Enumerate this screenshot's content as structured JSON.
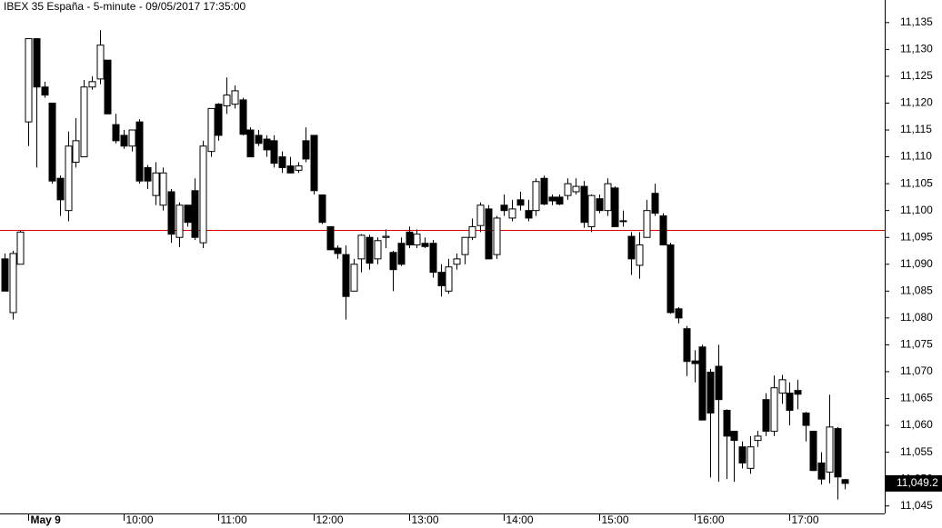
{
  "chart_data": {
    "type": "candlestick",
    "title": "IBEX 35 España - 5-minute - 09/05/2017 17:35:00",
    "categories": [
      null,
      null,
      null,
      "May 9",
      null,
      null,
      null,
      null,
      null,
      null,
      null,
      null,
      null,
      null,
      null,
      "10:00",
      null,
      null,
      null,
      null,
      null,
      null,
      null,
      null,
      null,
      null,
      null,
      "11:00",
      null,
      null,
      null,
      null,
      null,
      null,
      null,
      null,
      null,
      null,
      null,
      "12:00",
      null,
      null,
      null,
      null,
      null,
      null,
      null,
      null,
      null,
      null,
      null,
      "13:00",
      null,
      null,
      null,
      null,
      null,
      null,
      null,
      null,
      null,
      null,
      null,
      "14:00",
      null,
      null,
      null,
      null,
      null,
      null,
      null,
      null,
      null,
      null,
      null,
      "15:00",
      null,
      null,
      null,
      null,
      null,
      null,
      null,
      null,
      null,
      null,
      null,
      "16:00",
      null,
      null,
      null,
      null,
      null,
      null,
      null,
      null,
      null,
      null,
      null,
      "17:00",
      null,
      null,
      null,
      null,
      null,
      null,
      null
    ],
    "open": [
      11091,
      11081,
      11090,
      11116.5,
      11132,
      11123,
      11120,
      11106,
      11100,
      11109,
      11110,
      11123,
      11124.5,
      11128,
      11116,
      11114,
      11112,
      11116.5,
      11108,
      11102.8,
      11101,
      11103.5,
      11095,
      11101,
      11103.7,
      11094,
      11111,
      11119.8,
      11119.5,
      11119.8,
      11120.6,
      11115,
      11114,
      11113.3,
      11113,
      11110,
      11108.3,
      11107.5,
      11113,
      11114,
      11102.9,
      11097,
      11093,
      11091.8,
      11085,
      11091,
      11095,
      11091,
      11095,
      11092.2,
      11093.9,
      11096,
      11093.6,
      11093.9,
      11093.9,
      11088.5,
      11085,
      11090,
      11091.8,
      11095,
      11097.2,
      11100.3,
      11091.8,
      11101,
      11098.6,
      11102,
      11100,
      11100,
      11106,
      11102.5,
      11102.5,
      11102.8,
      11103.5,
      11104.5,
      11097,
      11102.2,
      11100,
      11104.2,
      11098.1,
      11095.2,
      11089.8,
      11095,
      11103.2,
      11099,
      11093.6,
      11081.7,
      11078,
      11072,
      11074.6,
      11069.9,
      11071,
      11062.8,
      11058.9,
      11056,
      11052,
      11057.2,
      11064.8,
      11058.9,
      11066,
      11066,
      11066.5,
      11062.3,
      11058.9,
      11053,
      11051.3,
      11059.4,
      11049.9
    ],
    "high": [
      11092,
      11092.5,
      11096.3,
      11132,
      11132,
      11124,
      11120,
      11106.5,
      11114.7,
      11117.2,
      11124.3,
      11125,
      11133.6,
      11128,
      11118,
      11115,
      11115,
      11117,
      11108.5,
      11109,
      11108,
      11104,
      11101.5,
      11101,
      11106,
      11113,
      11119,
      11120,
      11124.8,
      11123.3,
      11121,
      11115.5,
      11115,
      11114,
      11114,
      11111,
      11110,
      11109,
      11115.5,
      11114,
      11103,
      11097,
      11093.5,
      11093.5,
      11091,
      11095.6,
      11095.5,
      11095,
      11096.5,
      11092.5,
      11095,
      11097,
      11096.5,
      11095,
      11094.5,
      11090,
      11091,
      11092,
      11095,
      11098.5,
      11101.5,
      11101,
      11099,
      11103,
      11102,
      11103.5,
      11102,
      11106,
      11106.5,
      11103,
      11103,
      11106,
      11106,
      11105.5,
      11103,
      11103,
      11106,
      11104.5,
      11100,
      11096,
      11096,
      11102,
      11105,
      11099.5,
      11094,
      11082,
      11078.5,
      11074,
      11075,
      11070.5,
      11075,
      11063,
      11059,
      11057,
      11058,
      11059,
      11066,
      11069.3,
      11069.4,
      11068,
      11068.5,
      11062.5,
      11059,
      11055,
      11065.7,
      11059.7,
      11050
    ],
    "low": [
      11085,
      11079.7,
      11090,
      11112,
      11108,
      11121,
      11105,
      11099,
      11098,
      11108,
      11110,
      11122.5,
      11123.5,
      11118,
      11112.5,
      11111.5,
      11111,
      11105,
      11104,
      11101,
      11100,
      11094,
      11093.2,
      11097,
      11094.5,
      11093,
      11110,
      11113,
      11118,
      11119,
      11114,
      11110,
      11112,
      11110,
      11108,
      11107,
      11107,
      11107,
      11109,
      11103,
      11097.5,
      11092.7,
      11091,
      11079.7,
      11085,
      11088.5,
      11089,
      11090,
      11093,
      11085,
      11089.7,
      11093,
      11093,
      11093,
      11087.5,
      11084,
      11084.5,
      11089,
      11090,
      11094.5,
      11096,
      11091,
      11091,
      11099,
      11098,
      11100,
      11098,
      11099,
      11101,
      11101,
      11101,
      11102,
      11103,
      11096.8,
      11096,
      11099.5,
      11099,
      11097,
      11097,
      11088,
      11087.3,
      11095,
      11099,
      11093.5,
      11080.8,
      11079,
      11069.2,
      11068,
      11061,
      11050.3,
      11049.5,
      11050,
      11049.5,
      11052,
      11051,
      11056,
      11058,
      11058,
      11064,
      11060,
      11063,
      11057,
      11051.5,
      11049,
      11049.2,
      11046.2,
      11048.1
    ],
    "close": [
      11085,
      11092,
      11096,
      11132,
      11123,
      11121.5,
      11105.5,
      11102,
      11112,
      11113,
      11123,
      11124,
      11130.8,
      11118,
      11113,
      11112,
      11115,
      11105.5,
      11105.5,
      11107,
      11107,
      11095.6,
      11101,
      11097.8,
      11095,
      11112,
      11119,
      11114,
      11121.5,
      11122.3,
      11114.2,
      11110,
      11112.5,
      11111.3,
      11108.8,
      11108,
      11107,
      11108.3,
      11109.6,
      11103.7,
      11097.8,
      11092.7,
      11092,
      11084,
      11090,
      11095.4,
      11090.2,
      11094.4,
      11095.2,
      11089,
      11090,
      11093.6,
      11095.6,
      11093.3,
      11088.5,
      11086,
      11089.5,
      11091,
      11095,
      11097,
      11101,
      11091,
      11098.6,
      11100,
      11100.3,
      11101,
      11098.6,
      11105.4,
      11101.2,
      11101.8,
      11101.2,
      11105,
      11104.5,
      11097.8,
      11102.8,
      11100,
      11105,
      11097,
      11098,
      11091,
      11093.6,
      11100,
      11099.5,
      11093.6,
      11081,
      11080,
      11071.9,
      11071.5,
      11061,
      11062.3,
      11064.8,
      11058,
      11057.2,
      11053,
      11056,
      11058,
      11058.9,
      11067,
      11068.5,
      11062.8,
      11065.8,
      11060,
      11051.6,
      11050,
      11059.7,
      11050.4,
      11049.2
    ],
    "up_color": "#ffffff",
    "down_color": "#000000",
    "reference_line": 11096.3,
    "reference_color": "#e00000",
    "last_price": {
      "value": 11049.2,
      "label": "11,049.2"
    },
    "ylim": [
      11043.6,
      11139.2
    ],
    "yticks": [
      {
        "value": 11045,
        "label": "11,045"
      },
      {
        "value": 11050,
        "label": "11,050"
      },
      {
        "value": 11055,
        "label": "11,055"
      },
      {
        "value": 11060,
        "label": "11,060"
      },
      {
        "value": 11065,
        "label": "11,065"
      },
      {
        "value": 11070,
        "label": "11,070"
      },
      {
        "value": 11075,
        "label": "11,075"
      },
      {
        "value": 11080,
        "label": "11,080"
      },
      {
        "value": 11085,
        "label": "11,085"
      },
      {
        "value": 11090,
        "label": "11,090"
      },
      {
        "value": 11095,
        "label": "11,095"
      },
      {
        "value": 11100,
        "label": "11,100"
      },
      {
        "value": 11105,
        "label": "11,105"
      },
      {
        "value": 11110,
        "label": "11,110"
      },
      {
        "value": 11115,
        "label": "11,115"
      },
      {
        "value": 11120,
        "label": "11,120"
      },
      {
        "value": 11125,
        "label": "11,125"
      },
      {
        "value": 11130,
        "label": "11,130"
      },
      {
        "value": 11135,
        "label": "11,135"
      }
    ]
  }
}
